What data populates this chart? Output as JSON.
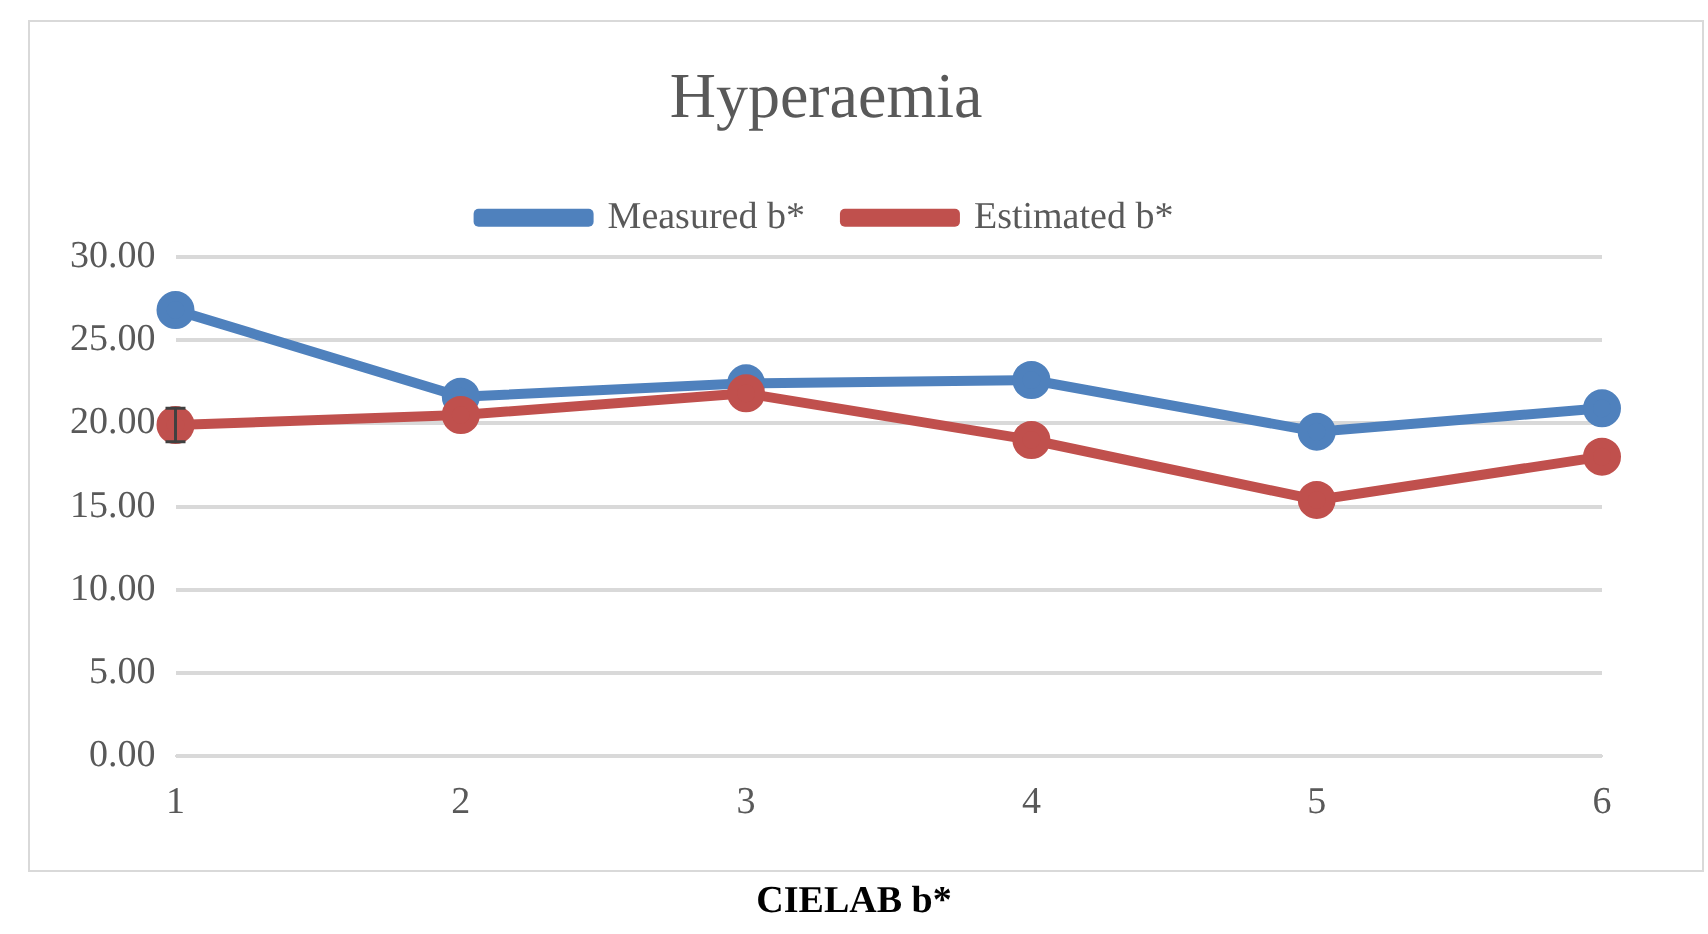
{
  "chart_data": {
    "type": "line",
    "title": "Hyperaemia",
    "xlabel": "CIELAB b*",
    "categories": [
      "1",
      "2",
      "3",
      "4",
      "5",
      "6"
    ],
    "series": [
      {
        "name": "Measured b*",
        "color": "#4f81bd",
        "values": [
          26.8,
          21.6,
          22.4,
          22.6,
          19.5,
          20.9
        ]
      },
      {
        "name": "Estimated b*",
        "color": "#c0504d",
        "values": [
          19.9,
          20.5,
          21.8,
          19.0,
          15.4,
          18.0
        ],
        "errors": [
          1.0,
          null,
          null,
          null,
          null,
          null
        ]
      }
    ],
    "ylim": [
      0,
      30
    ],
    "yticks": [
      {
        "value": 0,
        "label": "0.00"
      },
      {
        "value": 5,
        "label": "5.00"
      },
      {
        "value": 10,
        "label": "10.00"
      },
      {
        "value": 15,
        "label": "15.00"
      },
      {
        "value": 20,
        "label": "20.00"
      },
      {
        "value": 25,
        "label": "25.00"
      },
      {
        "value": 30,
        "label": "30.00"
      }
    ],
    "grid": "y",
    "legend": "top",
    "marker": "circle",
    "line_style": "solid"
  }
}
